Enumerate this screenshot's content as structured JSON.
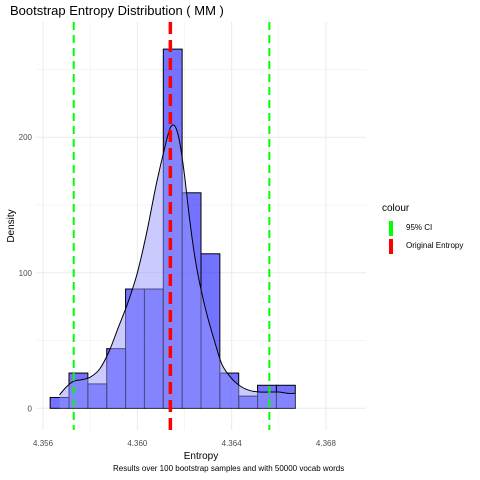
{
  "title": "Bootstrap Entropy Distribution ( MM )",
  "caption": "Results over 100 bootstrap samples and with 50000 vocab words",
  "legend": {
    "title": "colour",
    "items": [
      {
        "label": "95% CI",
        "color": "#00ff00"
      },
      {
        "label": "Original Entropy",
        "color": "#ff0000"
      }
    ]
  },
  "chart_data": {
    "type": "histogram",
    "title": "Bootstrap Entropy Distribution ( MM )",
    "xlabel": "Entropy",
    "ylabel": "Density",
    "xlim": [
      4.3557,
      4.3697
    ],
    "ylim": [
      -16,
      285
    ],
    "xticks": [
      4.356,
      4.36,
      4.364,
      4.368
    ],
    "xtick_labels": [
      "4.356",
      "4.360",
      "4.364",
      "4.368"
    ],
    "yticks": [
      0,
      100,
      200
    ],
    "ytick_labels": [
      "0",
      "100",
      "200"
    ],
    "grid": true,
    "legend_position": "right",
    "bin_width": 0.0008,
    "bins": [
      {
        "x0": 4.3563,
        "x1": 4.3571,
        "density": 8
      },
      {
        "x0": 4.3571,
        "x1": 4.3579,
        "density": 26
      },
      {
        "x0": 4.3579,
        "x1": 4.3587,
        "density": 18
      },
      {
        "x0": 4.3587,
        "x1": 4.3595,
        "density": 44
      },
      {
        "x0": 4.3595,
        "x1": 4.3603,
        "density": 88
      },
      {
        "x0": 4.3603,
        "x1": 4.3611,
        "density": 88
      },
      {
        "x0": 4.3611,
        "x1": 4.3619,
        "density": 265
      },
      {
        "x0": 4.3619,
        "x1": 4.3627,
        "density": 159
      },
      {
        "x0": 4.3627,
        "x1": 4.3635,
        "density": 114
      },
      {
        "x0": 4.3635,
        "x1": 4.3643,
        "density": 26
      },
      {
        "x0": 4.3643,
        "x1": 4.3651,
        "density": 9
      },
      {
        "x0": 4.3651,
        "x1": 4.3659,
        "density": 17
      },
      {
        "x0": 4.3659,
        "x1": 4.3667,
        "density": 17
      }
    ],
    "density_curve": {
      "x": [
        4.3567,
        4.357,
        4.3573,
        4.3576,
        4.358,
        4.3584,
        4.3588,
        4.3592,
        4.3596,
        4.36,
        4.3604,
        4.3608,
        4.3612,
        4.3614,
        4.3616,
        4.3618,
        4.362,
        4.3622,
        4.3624,
        4.3626,
        4.3628,
        4.363,
        4.3633,
        4.3636,
        4.364,
        4.3644,
        4.3648,
        4.3652,
        4.3656,
        4.366,
        4.3664,
        4.3667
      ],
      "y": [
        10,
        16,
        20,
        21,
        23,
        29,
        42,
        60,
        78,
        100,
        130,
        165,
        195,
        207,
        208,
        196,
        172,
        142,
        116,
        96,
        80,
        66,
        48,
        32,
        22,
        16,
        13,
        12,
        12,
        12,
        11,
        11
      ]
    },
    "reference_lines": [
      {
        "name": "95% CI",
        "x": 4.3573,
        "color": "#00ff00"
      },
      {
        "name": "95% CI",
        "x": 4.3656,
        "color": "#00ff00"
      },
      {
        "name": "Original Entropy",
        "x": 4.3614,
        "color": "#ff0000"
      }
    ]
  }
}
